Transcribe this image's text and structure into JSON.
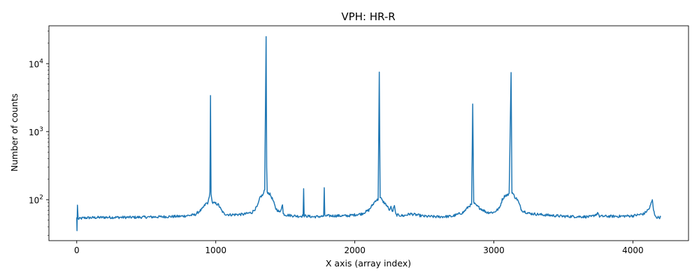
{
  "chart_data": {
    "type": "line",
    "title": "VPH: HR-R",
    "xlabel": "X axis (array index)",
    "ylabel": "Number of counts",
    "yscale": "log",
    "xlim": [
      -200,
      4400
    ],
    "ylim": [
      25,
      36000
    ],
    "grid": false,
    "legend": "none",
    "x_ticks": [
      {
        "value": 0,
        "label": "0"
      },
      {
        "value": 1000,
        "label": "1000"
      },
      {
        "value": 2000,
        "label": "2000"
      },
      {
        "value": 3000,
        "label": "3000"
      },
      {
        "value": 4000,
        "label": "4000"
      }
    ],
    "y_ticks": [
      {
        "value": 100,
        "label": "10",
        "exp": "2"
      },
      {
        "value": 1000,
        "label": "10",
        "exp": "3"
      },
      {
        "value": 10000,
        "label": "10",
        "exp": "4"
      }
    ],
    "series": [
      {
        "color": "#1f77b4",
        "baseline": [
          [
            0,
            55
          ],
          [
            2,
            35
          ],
          [
            5,
            83
          ],
          [
            10,
            52
          ],
          [
            50,
            54
          ],
          [
            200,
            55
          ],
          [
            400,
            55
          ],
          [
            600,
            56
          ],
          [
            750,
            57
          ],
          [
            850,
            60
          ],
          [
            900,
            72
          ],
          [
            930,
            88
          ],
          [
            945,
            90
          ],
          [
            958,
            130
          ],
          [
            962,
            3400
          ],
          [
            966,
            120
          ],
          [
            975,
            90
          ],
          [
            1000,
            88
          ],
          [
            1020,
            84
          ],
          [
            1040,
            70
          ],
          [
            1060,
            62
          ],
          [
            1100,
            60
          ],
          [
            1200,
            61
          ],
          [
            1260,
            65
          ],
          [
            1300,
            80
          ],
          [
            1320,
            110
          ],
          [
            1340,
            118
          ],
          [
            1352,
            140
          ],
          [
            1362,
            25000
          ],
          [
            1366,
            300
          ],
          [
            1370,
            130
          ],
          [
            1390,
            120
          ],
          [
            1410,
            100
          ],
          [
            1430,
            75
          ],
          [
            1460,
            65
          ],
          [
            1480,
            84
          ],
          [
            1485,
            62
          ],
          [
            1500,
            60
          ],
          [
            1560,
            58
          ],
          [
            1600,
            57
          ],
          [
            1628,
            58
          ],
          [
            1632,
            145
          ],
          [
            1636,
            58
          ],
          [
            1700,
            56
          ],
          [
            1776,
            57
          ],
          [
            1780,
            150
          ],
          [
            1784,
            58
          ],
          [
            1850,
            58
          ],
          [
            1950,
            58
          ],
          [
            2050,
            62
          ],
          [
            2100,
            70
          ],
          [
            2130,
            85
          ],
          [
            2150,
            98
          ],
          [
            2168,
            100
          ],
          [
            2176,
            7500
          ],
          [
            2182,
            110
          ],
          [
            2200,
            95
          ],
          [
            2225,
            85
          ],
          [
            2250,
            70
          ],
          [
            2260,
            80
          ],
          [
            2270,
            65
          ],
          [
            2285,
            82
          ],
          [
            2295,
            60
          ],
          [
            2350,
            58
          ],
          [
            2400,
            62
          ],
          [
            2500,
            57
          ],
          [
            2600,
            56
          ],
          [
            2700,
            57
          ],
          [
            2780,
            65
          ],
          [
            2820,
            80
          ],
          [
            2840,
            85
          ],
          [
            2848,
            2550
          ],
          [
            2855,
            90
          ],
          [
            2870,
            83
          ],
          [
            2900,
            75
          ],
          [
            2950,
            65
          ],
          [
            3000,
            65
          ],
          [
            3040,
            75
          ],
          [
            3060,
            100
          ],
          [
            3080,
            115
          ],
          [
            3110,
            120
          ],
          [
            3124,
            7400
          ],
          [
            3130,
            130
          ],
          [
            3150,
            110
          ],
          [
            3170,
            100
          ],
          [
            3200,
            70
          ],
          [
            3250,
            63
          ],
          [
            3350,
            60
          ],
          [
            3500,
            57
          ],
          [
            3700,
            56
          ],
          [
            3750,
            63
          ],
          [
            3760,
            57
          ],
          [
            3900,
            57
          ],
          [
            4000,
            58
          ],
          [
            4080,
            62
          ],
          [
            4120,
            75
          ],
          [
            4140,
            100
          ],
          [
            4148,
            70
          ],
          [
            4160,
            58
          ],
          [
            4170,
            55
          ],
          [
            4200,
            55
          ]
        ]
      }
    ],
    "colors": {
      "line": "#1f77b4",
      "axes": "#000000",
      "background": "#ffffff"
    }
  }
}
